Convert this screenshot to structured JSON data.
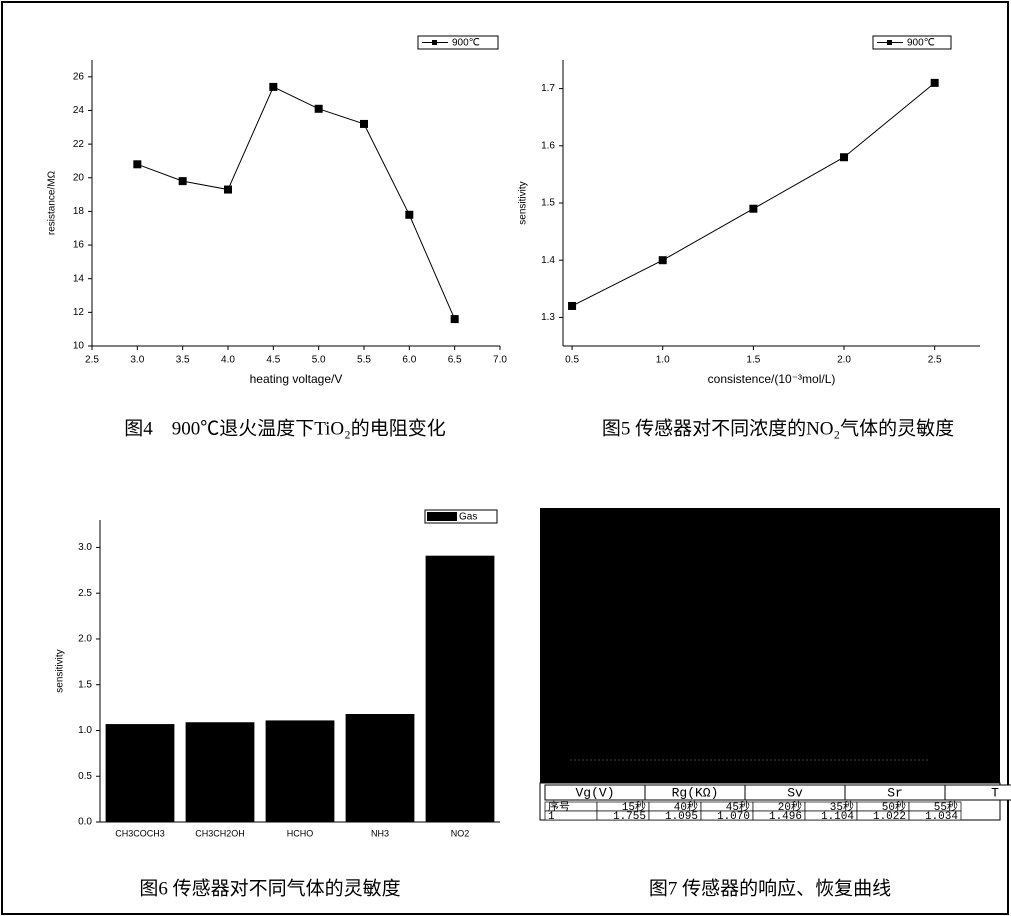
{
  "chart_data": [
    {
      "type": "line",
      "caption": "图4　900℃退火温度下TiO₂的电阻变化",
      "x_label": "heating voltage/V",
      "y_label": "resistance/MΩ",
      "x": [
        3.0,
        3.5,
        4.0,
        4.5,
        5.0,
        5.5,
        6.0,
        6.5
      ],
      "series": [
        {
          "name": "900℃",
          "color": "#000000",
          "values": [
            20.8,
            19.8,
            19.3,
            25.4,
            24.1,
            23.2,
            17.8,
            11.6
          ]
        }
      ],
      "xlim": [
        2.5,
        7.0
      ],
      "xticks": [
        2.5,
        {
          "value": 3,
          "label": "3.0"
        },
        3.5,
        {
          "value": 4,
          "label": "4.0"
        },
        4.5,
        {
          "value": 5,
          "label": "5.0"
        },
        5.5,
        {
          "value": 6,
          "label": "6.0"
        },
        6.5,
        {
          "value": 7,
          "label": "7.0"
        }
      ],
      "ylim": [
        10,
        27
      ],
      "yticks": [
        10,
        12,
        14,
        16,
        18,
        20,
        22,
        24,
        26
      ]
    },
    {
      "type": "line",
      "caption": "图5 传感器对不同浓度的NO₂气体的灵敏度",
      "x_label": "consistence/(10⁻³mol/L)",
      "y_label": "sensitivity",
      "x": [
        0.5,
        1.0,
        1.5,
        2.0,
        2.5
      ],
      "series": [
        {
          "name": "900℃",
          "color": "#000000",
          "values": [
            1.32,
            1.4,
            1.49,
            1.58,
            1.71
          ]
        }
      ],
      "xlim": [
        0.45,
        2.75
      ],
      "xticks": [
        0.5,
        {
          "value": 1,
          "label": "1.0"
        },
        1.5,
        {
          "value": 2,
          "label": "2.0"
        },
        2.5
      ],
      "ylim": [
        1.25,
        1.75
      ],
      "yticks": [
        1.3,
        1.4,
        1.5,
        1.6,
        1.7
      ]
    },
    {
      "type": "bar",
      "caption": "图6 传感器对不同气体的灵敏度",
      "y_label": "sensitivity",
      "categories": [
        "CH3COCH3",
        "CH3CH2OH",
        "HCHO",
        "NH3",
        "NO2"
      ],
      "series": [
        {
          "name": "Gas",
          "color": "#000000",
          "values": [
            1.07,
            1.09,
            1.11,
            1.18,
            2.91
          ]
        }
      ],
      "ylim": [
        0,
        3.3
      ],
      "yticks": [
        {
          "value": 0,
          "label": "0.0"
        },
        0.5,
        {
          "value": 1,
          "label": "1.0"
        },
        1.5,
        {
          "value": 2,
          "label": "2.0"
        },
        2.5,
        {
          "value": 3,
          "label": "3.0"
        }
      ]
    }
  ],
  "figure7": {
    "caption": "图7 传感器的响应、恢复曲线",
    "tabs": [
      "Vg(V)",
      "Rg(KΩ)",
      "Sv",
      "Sr",
      "T"
    ],
    "table": {
      "header": [
        "序号",
        "15秒",
        "40秒",
        "45秒",
        "20秒",
        "35秒",
        "50秒",
        "55秒"
      ],
      "rows": [
        [
          "1",
          "1.755",
          "1.095",
          "1.070",
          "1.496",
          "1.104",
          "1.022",
          "1.034"
        ]
      ]
    }
  }
}
